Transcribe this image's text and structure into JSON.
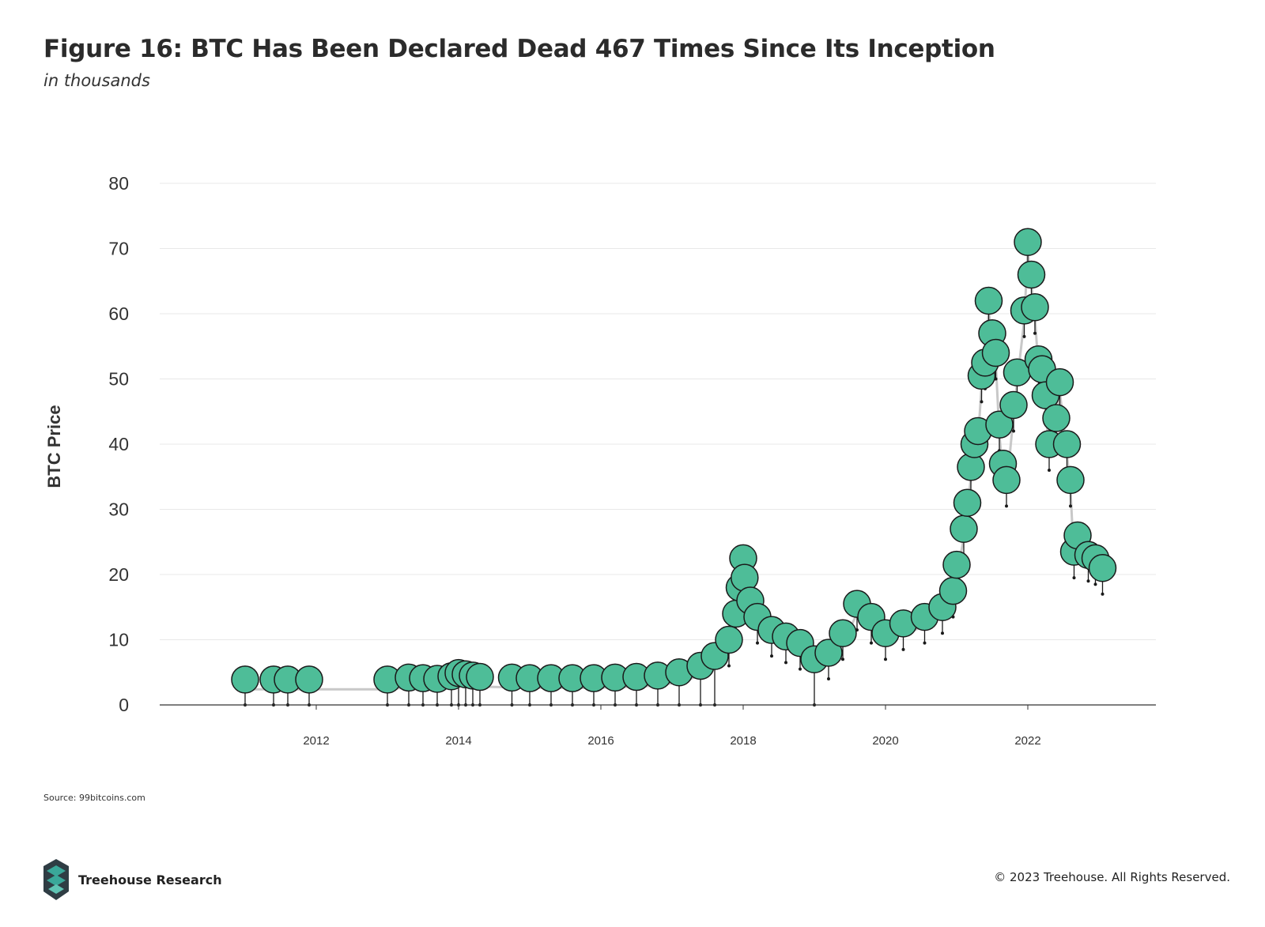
{
  "title": "Figure 16: BTC Has Been Declared Dead 467 Times Since Its Inception",
  "subtitle": "in thousands",
  "source": "Source: 99bitcoins.com",
  "brand": {
    "name": "Treehouse Research"
  },
  "copyright": "© 2023 Treehouse. All Rights Reserved.",
  "colors": {
    "bubble": "#4ebd98",
    "bubble_stroke": "#1a1a1a",
    "price_line": "#c8c8c8",
    "stem": "#1a1a1a",
    "grid": "#e8e8e8",
    "axis": "#333333",
    "logo_dark": "#2f3d44",
    "logo_teal": "#3aa89a"
  },
  "chart_data": {
    "type": "scatter",
    "title": "Figure 16: BTC Has Been Declared Dead 467 Times Since Its Inception",
    "subtitle": "in thousands",
    "xlabel": "",
    "ylabel": "BTC Price",
    "xlim": [
      2009.8,
      2023.8
    ],
    "ylim": [
      0,
      80
    ],
    "xticks": [
      "2012",
      "2014",
      "2016",
      "2018",
      "2020",
      "2022"
    ],
    "yticks": [
      "0",
      "10",
      "20",
      "30",
      "40",
      "50",
      "60",
      "70",
      "80"
    ],
    "grid": true,
    "legend": "none",
    "series": [
      {
        "points": [
          [
            2011.0,
            3.9
          ],
          [
            2011.4,
            3.9
          ],
          [
            2011.6,
            3.9
          ],
          [
            2011.9,
            3.9
          ],
          [
            2013.0,
            3.9
          ],
          [
            2013.3,
            4.2
          ],
          [
            2013.5,
            4.1
          ],
          [
            2013.7,
            4.0
          ],
          [
            2013.9,
            4.4
          ],
          [
            2014.0,
            4.9
          ],
          [
            2014.1,
            4.7
          ],
          [
            2014.2,
            4.5
          ],
          [
            2014.3,
            4.3
          ],
          [
            2014.75,
            4.2
          ],
          [
            2015.0,
            4.1
          ],
          [
            2015.3,
            4.1
          ],
          [
            2015.6,
            4.1
          ],
          [
            2015.9,
            4.1
          ],
          [
            2016.2,
            4.2
          ],
          [
            2016.5,
            4.3
          ],
          [
            2016.8,
            4.5
          ],
          [
            2017.1,
            5.0
          ],
          [
            2017.4,
            6.0
          ],
          [
            2017.6,
            7.5
          ],
          [
            2017.8,
            10.0
          ],
          [
            2017.9,
            14.0
          ],
          [
            2017.95,
            18.0
          ],
          [
            2018.0,
            22.5
          ],
          [
            2018.02,
            19.5
          ],
          [
            2018.1,
            16.0
          ],
          [
            2018.2,
            13.5
          ],
          [
            2018.4,
            11.5
          ],
          [
            2018.6,
            10.5
          ],
          [
            2018.8,
            9.5
          ],
          [
            2019.0,
            7.0
          ],
          [
            2019.2,
            8.0
          ],
          [
            2019.4,
            11.0
          ],
          [
            2019.6,
            15.5
          ],
          [
            2019.8,
            13.5
          ],
          [
            2020.0,
            11.0
          ],
          [
            2020.25,
            12.5
          ],
          [
            2020.55,
            13.5
          ],
          [
            2020.8,
            15.0
          ],
          [
            2020.95,
            17.5
          ],
          [
            2021.0,
            21.5
          ],
          [
            2021.1,
            27.0
          ],
          [
            2021.15,
            31.0
          ],
          [
            2021.2,
            36.5
          ],
          [
            2021.25,
            40.0
          ],
          [
            2021.3,
            42.0
          ],
          [
            2021.35,
            50.5
          ],
          [
            2021.4,
            52.5
          ],
          [
            2021.45,
            62.0
          ],
          [
            2021.5,
            57.0
          ],
          [
            2021.55,
            54.0
          ],
          [
            2021.6,
            43.0
          ],
          [
            2021.65,
            37.0
          ],
          [
            2021.7,
            34.5
          ],
          [
            2021.8,
            46.0
          ],
          [
            2021.85,
            51.0
          ],
          [
            2021.95,
            60.5
          ],
          [
            2022.0,
            71.0
          ],
          [
            2022.05,
            66.0
          ],
          [
            2022.1,
            61.0
          ],
          [
            2022.15,
            53.0
          ],
          [
            2022.2,
            51.5
          ],
          [
            2022.25,
            47.5
          ],
          [
            2022.3,
            40.0
          ],
          [
            2022.4,
            44.0
          ],
          [
            2022.45,
            49.5
          ],
          [
            2022.55,
            40.0
          ],
          [
            2022.6,
            34.5
          ],
          [
            2022.65,
            23.5
          ],
          [
            2022.7,
            26.0
          ],
          [
            2022.85,
            23.0
          ],
          [
            2022.95,
            22.5
          ],
          [
            2023.05,
            21.0
          ]
        ]
      }
    ]
  }
}
